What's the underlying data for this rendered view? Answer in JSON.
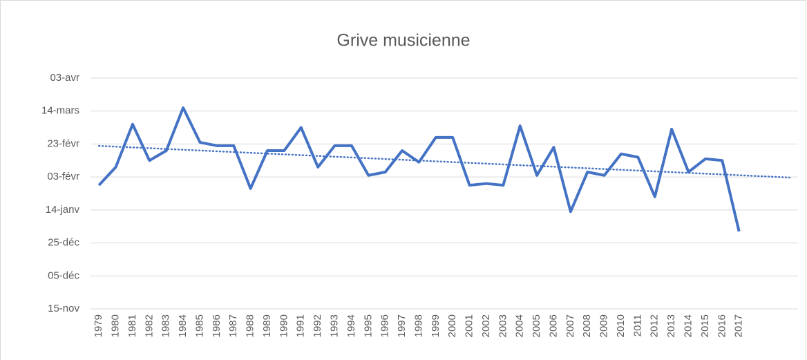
{
  "chart_data": {
    "type": "line",
    "title": "Grive musicienne",
    "categories": [
      "1979",
      "1980",
      "1981",
      "1982",
      "1983",
      "1984",
      "1985",
      "1986",
      "1987",
      "1988",
      "1989",
      "1990",
      "1991",
      "1992",
      "1993",
      "1994",
      "1995",
      "1996",
      "1997",
      "1998",
      "1999",
      "2000",
      "2001",
      "2002",
      "2003",
      "2004",
      "2005",
      "2006",
      "2007",
      "2008",
      "2009",
      "2010",
      "2011",
      "2012",
      "2013",
      "2014",
      "2015",
      "2016",
      "2017",
      null,
      null,
      null
    ],
    "series": [
      {
        "name": "Grive musicienne",
        "color": "#4472c4",
        "values": [
          75,
          86,
          112,
          90,
          96,
          122,
          101,
          99,
          99,
          73,
          96,
          96,
          110,
          86,
          99,
          99,
          81,
          83,
          96,
          89,
          104,
          104,
          75,
          76,
          75,
          111,
          81,
          98,
          59,
          83,
          81,
          94,
          92,
          68,
          109,
          83,
          91,
          90,
          47,
          null,
          null,
          null
        ]
      }
    ],
    "trendline": {
      "color": "#4472c4",
      "style": "dotted"
    },
    "ylim": [
      0,
      140
    ],
    "yticks": [
      {
        "value": 0,
        "label": "15-nov"
      },
      {
        "value": 20,
        "label": "05-déc"
      },
      {
        "value": 40,
        "label": "25-déc"
      },
      {
        "value": 60,
        "label": "14-janv"
      },
      {
        "value": 80,
        "label": "03-févr"
      },
      {
        "value": 100,
        "label": "23-févr"
      },
      {
        "value": 120,
        "label": "14-mars"
      },
      {
        "value": 140,
        "label": "03-avr"
      }
    ],
    "grid": true
  }
}
